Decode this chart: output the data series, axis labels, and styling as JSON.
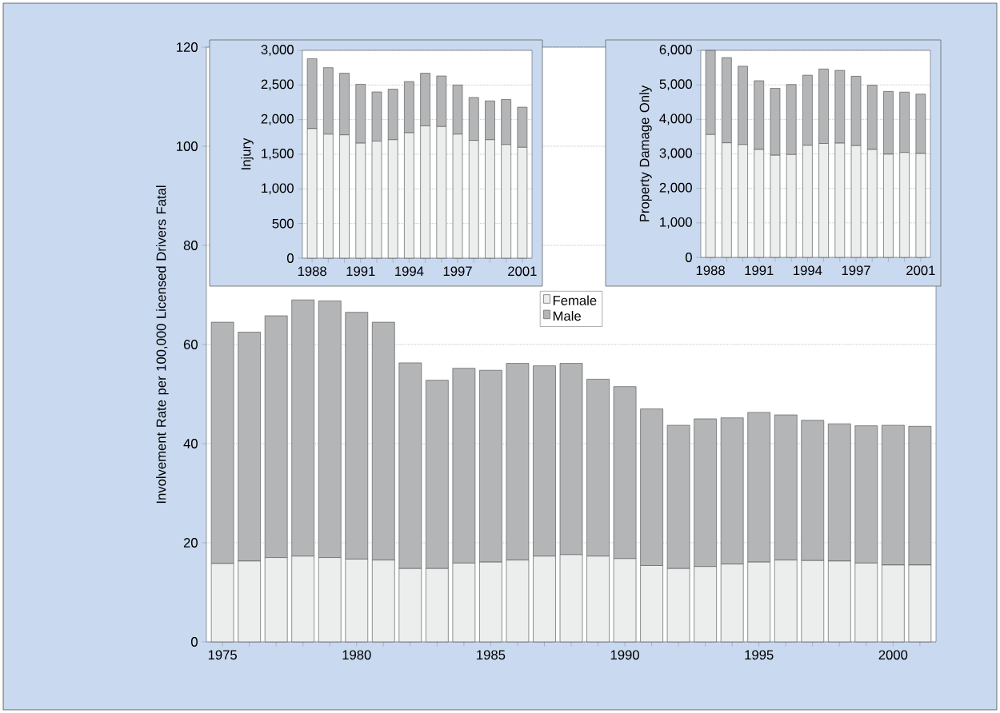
{
  "chart_data": [
    {
      "type": "bar",
      "stacked": true,
      "ylabel": "Involvement Rate per 100,000 Licensed Drivers Fatal",
      "grid": "y",
      "legend": "top",
      "categories": [
        "1975",
        null,
        null,
        null,
        null,
        "1980",
        null,
        null,
        null,
        null,
        "1985",
        null,
        null,
        null,
        null,
        "1990",
        null,
        null,
        null,
        null,
        "1995",
        null,
        null,
        null,
        null,
        "2000",
        null
      ],
      "ylim": [
        0,
        120
      ],
      "yticks": [
        0,
        20,
        40,
        60,
        80,
        100,
        120
      ],
      "series": [
        {
          "name": "Female",
          "color": "#eceeee",
          "values": [
            15.8,
            16.3,
            17.0,
            17.3,
            17.0,
            16.7,
            16.5,
            14.8,
            14.8,
            15.9,
            16.1,
            16.5,
            17.3,
            17.6,
            17.3,
            16.8,
            15.4,
            14.8,
            15.2,
            15.7,
            16.1,
            16.5,
            16.4,
            16.3,
            15.9,
            15.5,
            15.5
          ]
        },
        {
          "name": "Male",
          "color": "#b4b5b7",
          "values": [
            48.7,
            46.2,
            48.8,
            51.7,
            51.8,
            49.8,
            48.0,
            41.5,
            38.0,
            39.3,
            38.7,
            39.7,
            38.4,
            38.6,
            35.7,
            34.7,
            31.6,
            28.9,
            29.8,
            29.5,
            30.2,
            29.3,
            28.3,
            27.7,
            27.7,
            28.2,
            28.0
          ]
        }
      ]
    },
    {
      "type": "bar",
      "stacked": true,
      "ylabel": "Injury",
      "grid": "y",
      "categories": [
        "1988",
        null,
        null,
        "1991",
        null,
        null,
        "1994",
        null,
        null,
        "1997",
        null,
        null,
        null,
        "2001"
      ],
      "ylim": [
        0,
        3000
      ],
      "yticks": [
        0,
        500,
        {
          "value": 1000,
          "label": "1,000"
        },
        {
          "value": 1500,
          "label": "1,500"
        },
        {
          "value": 2000,
          "label": "2,000"
        },
        {
          "value": 2500,
          "label": "2,500"
        },
        {
          "value": 3000,
          "label": "3,000"
        }
      ],
      "series": [
        {
          "color": "#eceeee",
          "values": [
            1870,
            1790,
            1780,
            1660,
            1690,
            1710,
            1810,
            1910,
            1900,
            1790,
            1700,
            1710,
            1640,
            1600
          ]
        },
        {
          "color": "#b4b5b7",
          "values": [
            1010,
            960,
            890,
            850,
            710,
            730,
            740,
            760,
            730,
            710,
            620,
            560,
            650,
            580
          ]
        }
      ]
    },
    {
      "type": "bar",
      "stacked": true,
      "ylabel": "Property Damage Only",
      "grid": "y",
      "categories": [
        "1988",
        null,
        null,
        "1991",
        null,
        null,
        "1994",
        null,
        null,
        "1997",
        null,
        null,
        null,
        "2001"
      ],
      "ylim": [
        0,
        6000
      ],
      "yticks": [
        0,
        {
          "value": 1000,
          "label": "1,000"
        },
        {
          "value": 2000,
          "label": "2,000"
        },
        {
          "value": 3000,
          "label": "3,000"
        },
        {
          "value": 4000,
          "label": "4,000"
        },
        {
          "value": 5000,
          "label": "5,000"
        },
        {
          "value": 6000,
          "label": "6,000"
        }
      ],
      "series": [
        {
          "color": "#eceeee",
          "values": [
            3560,
            3320,
            3270,
            3130,
            2960,
            2980,
            3250,
            3300,
            3310,
            3240,
            3130,
            2990,
            3040,
            3010
          ]
        },
        {
          "color": "#b4b5b7",
          "values": [
            2440,
            2470,
            2270,
            1990,
            1940,
            2030,
            2030,
            2160,
            2110,
            2010,
            1860,
            1820,
            1750,
            1720
          ]
        }
      ]
    }
  ]
}
